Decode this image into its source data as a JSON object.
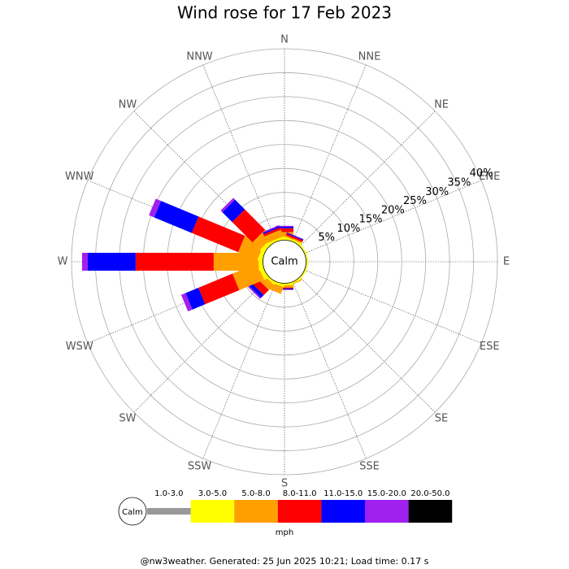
{
  "chart_data": {
    "type": "windrose",
    "title": "Wind rose for 17 Feb 2023",
    "categories": [
      "N",
      "NNE",
      "NE",
      "ENE",
      "E",
      "ESE",
      "SE",
      "SSE",
      "S",
      "SSW",
      "SW",
      "WSW",
      "W",
      "WNW",
      "NW",
      "NNW"
    ],
    "calm_label": "Calm",
    "rlim": [
      0,
      40
    ],
    "rticks": [
      {
        "value": 5,
        "label": "5%"
      },
      {
        "value": 10,
        "label": "10%"
      },
      {
        "value": 15,
        "label": "15%"
      },
      {
        "value": 20,
        "label": "20%"
      },
      {
        "value": 25,
        "label": "25%"
      },
      {
        "value": 30,
        "label": "30%"
      },
      {
        "value": 35,
        "label": "35%"
      },
      {
        "value": 40,
        "label": "40%"
      }
    ],
    "series": [
      {
        "name": "1.0-3.0",
        "color": "#999999",
        "values": [
          0,
          0,
          0,
          0,
          0,
          0,
          0,
          0,
          0,
          0,
          0,
          0,
          0,
          0,
          0,
          0
        ]
      },
      {
        "name": "3.0-5.0",
        "color": "#ffff00",
        "values": [
          0.5,
          0.4,
          0.2,
          0.2,
          0.2,
          0.2,
          0.2,
          0.3,
          0.4,
          0.5,
          0.5,
          0.9,
          0.9,
          0.9,
          0.9,
          0.5
        ]
      },
      {
        "name": "5.0-8.0",
        "color": "#ffa000",
        "values": [
          1.2,
          0.3,
          0,
          0,
          0,
          0,
          0,
          0.2,
          0.5,
          1.5,
          1.5,
          5.6,
          9.4,
          4.3,
          2.2,
          1.5
        ]
      },
      {
        "name": "8.0-11.0",
        "color": "#ff0000",
        "values": [
          0.8,
          0.4,
          0,
          0,
          0,
          0,
          0,
          0,
          0.2,
          0,
          1.5,
          7.7,
          16.3,
          10.5,
          6.0,
          0.5
        ]
      },
      {
        "name": "11.0-15.0",
        "color": "#0000ff",
        "values": [
          0.3,
          0.2,
          0,
          0,
          0,
          0,
          0,
          0,
          0.2,
          0,
          0.8,
          2.9,
          10.0,
          8.5,
          2.9,
          0.3
        ]
      },
      {
        "name": "15.0-20.0",
        "color": "#a020f0",
        "values": [
          0.2,
          0.1,
          0,
          0,
          0,
          0,
          0,
          0,
          0.1,
          0,
          0.3,
          1.0,
          1.2,
          1.2,
          0.5,
          0.2
        ]
      },
      {
        "name": "20.0-50.0",
        "color": "#000000",
        "values": [
          0,
          0,
          0,
          0,
          0,
          0,
          0,
          0,
          0,
          0,
          0,
          0,
          0,
          0,
          0,
          0
        ]
      }
    ],
    "unit": "mph",
    "footer": "@nw3weather. Generated: 25 Jun 2025 10:21; Load time: 0.17 s"
  }
}
